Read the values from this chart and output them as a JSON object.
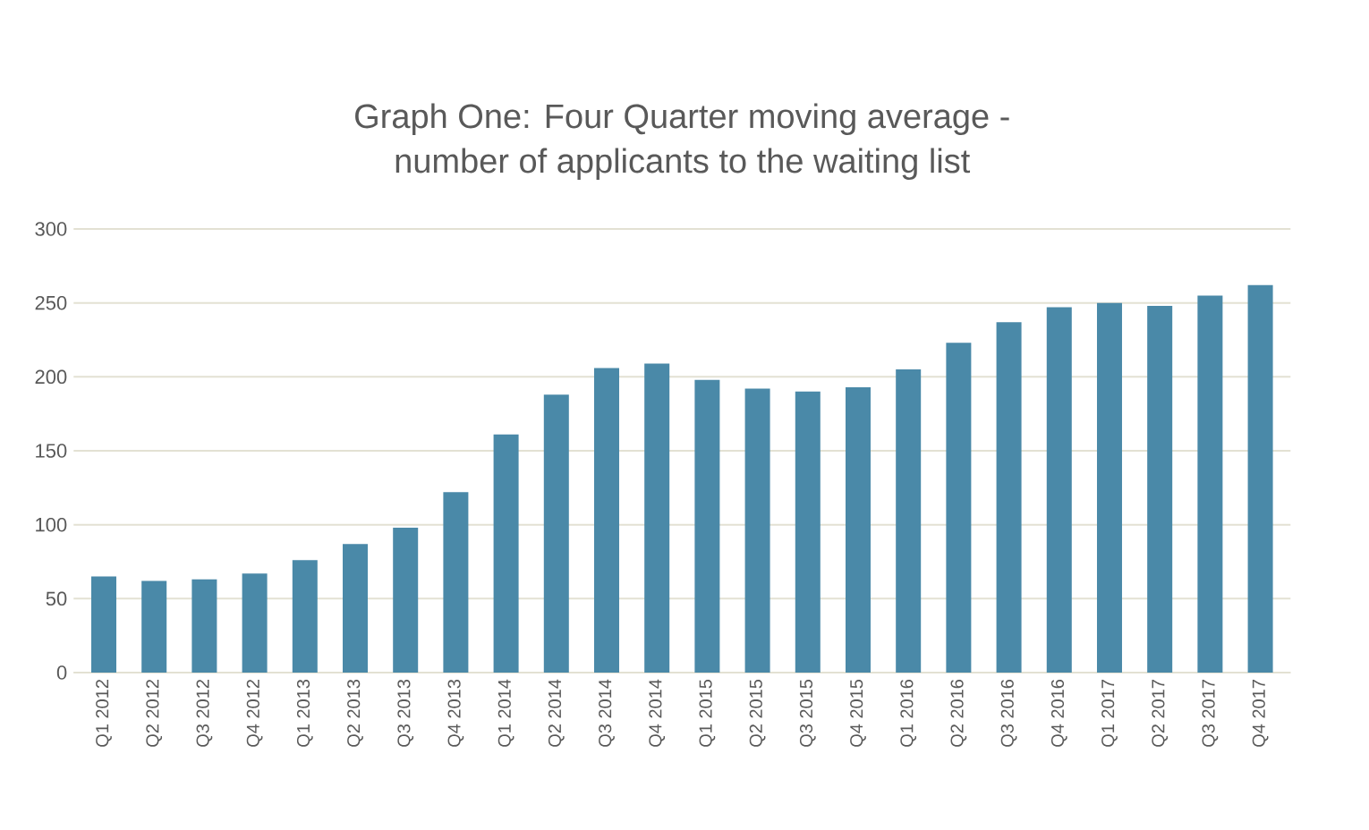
{
  "chart_data": {
    "type": "bar",
    "title": "Graph One: Four Quarter moving average -\nnumber of applicants to the waiting list",
    "categories": [
      "Q1 2012",
      "Q2 2012",
      "Q3 2012",
      "Q4 2012",
      "Q1 2013",
      "Q2 2013",
      "Q3 2013",
      "Q4 2013",
      "Q1 2014",
      "Q2 2014",
      "Q3 2014",
      "Q4 2014",
      "Q1 2015",
      "Q2 2015",
      "Q3 2015",
      "Q4 2015",
      "Q1 2016",
      "Q2 2016",
      "Q3 2016",
      "Q4 2016",
      "Q1 2017",
      "Q2 2017",
      "Q3 2017",
      "Q4 2017"
    ],
    "values": [
      65,
      62,
      63,
      67,
      76,
      87,
      98,
      122,
      161,
      188,
      206,
      209,
      198,
      192,
      190,
      193,
      205,
      223,
      237,
      247,
      250,
      248,
      255,
      262
    ],
    "color": "#4a89a8",
    "ylim": [
      0,
      300
    ],
    "yticks": [
      0,
      50,
      100,
      150,
      200,
      250,
      300
    ],
    "grid": "y"
  }
}
